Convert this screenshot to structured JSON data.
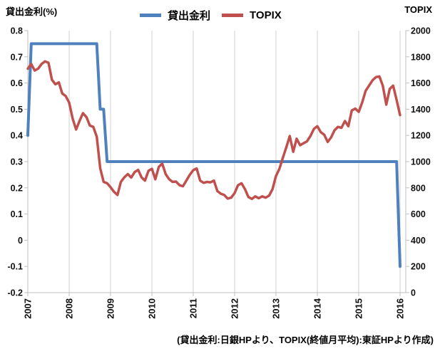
{
  "header": {
    "left_axis_title": "貸出金利(%)",
    "right_axis_title": "TOPIX"
  },
  "legend": [
    {
      "label": "貸出金利",
      "color": "#4F81BD"
    },
    {
      "label": "TOPIX",
      "color": "#C0504D"
    }
  ],
  "caption": "(貸出金利:日銀HPより、TOPIX(終値月平均):東証HPより作成)",
  "chart_data": {
    "type": "line",
    "title": "",
    "legend_position": "top-center",
    "grid": "vertical-yearly",
    "x": {
      "unit": "month",
      "start_year": 2007,
      "tick_labels": [
        "2007",
        "2008",
        "2009",
        "2010",
        "2011",
        "2012",
        "2013",
        "2014",
        "2015",
        "2016"
      ]
    },
    "left_axis": {
      "title": "貸出金利(%)",
      "min": -0.2,
      "max": 0.8,
      "ticks": [
        "0.8",
        "0.7",
        "0.6",
        "0.5",
        "0.4",
        "0.3",
        "0.2",
        "0.1",
        "0",
        "-0.1",
        "-0.2"
      ]
    },
    "right_axis": {
      "title": "TOPIX",
      "min": 0,
      "max": 2000,
      "ticks": [
        "2000",
        "1800",
        "1600",
        "1400",
        "1200",
        "1000",
        "800",
        "600",
        "400",
        "200",
        "0"
      ]
    },
    "series": [
      {
        "name": "貸出金利",
        "axis": "left",
        "color": "#4F81BD",
        "monthly_values": [
          0.4,
          0.75,
          0.75,
          0.75,
          0.75,
          0.75,
          0.75,
          0.75,
          0.75,
          0.75,
          0.75,
          0.75,
          0.75,
          0.75,
          0.75,
          0.75,
          0.75,
          0.75,
          0.75,
          0.75,
          0.75,
          0.5,
          0.5,
          0.3,
          0.3,
          0.3,
          0.3,
          0.3,
          0.3,
          0.3,
          0.3,
          0.3,
          0.3,
          0.3,
          0.3,
          0.3,
          0.3,
          0.3,
          0.3,
          0.3,
          0.3,
          0.3,
          0.3,
          0.3,
          0.3,
          0.3,
          0.3,
          0.3,
          0.3,
          0.3,
          0.3,
          0.3,
          0.3,
          0.3,
          0.3,
          0.3,
          0.3,
          0.3,
          0.3,
          0.3,
          0.3,
          0.3,
          0.3,
          0.3,
          0.3,
          0.3,
          0.3,
          0.3,
          0.3,
          0.3,
          0.3,
          0.3,
          0.3,
          0.3,
          0.3,
          0.3,
          0.3,
          0.3,
          0.3,
          0.3,
          0.3,
          0.3,
          0.3,
          0.3,
          0.3,
          0.3,
          0.3,
          0.3,
          0.3,
          0.3,
          0.3,
          0.3,
          0.3,
          0.3,
          0.3,
          0.3,
          0.3,
          0.3,
          0.3,
          0.3,
          0.3,
          0.3,
          0.3,
          0.3,
          0.3,
          0.3,
          0.3,
          0.3,
          -0.1
        ]
      },
      {
        "name": "TOPIX",
        "axis": "right",
        "color": "#C0504D",
        "monthly_values": [
          1710,
          1745,
          1695,
          1710,
          1745,
          1765,
          1755,
          1625,
          1590,
          1605,
          1520,
          1500,
          1450,
          1330,
          1245,
          1310,
          1370,
          1340,
          1275,
          1265,
          1190,
          950,
          845,
          835,
          805,
          770,
          745,
          845,
          880,
          905,
          878,
          920,
          937,
          880,
          855,
          930,
          945,
          865,
          960,
          985,
          905,
          865,
          845,
          848,
          820,
          812,
          855,
          900,
          935,
          948,
          855,
          838,
          845,
          842,
          855,
          775,
          755,
          745,
          718,
          725,
          760,
          820,
          835,
          790,
          730,
          715,
          735,
          720,
          735,
          725,
          740,
          790,
          890,
          945,
          1030,
          1110,
          1195,
          1075,
          1175,
          1125,
          1140,
          1155,
          1195,
          1250,
          1270,
          1225,
          1205,
          1150,
          1185,
          1240,
          1265,
          1258,
          1310,
          1270,
          1390,
          1405,
          1380,
          1450,
          1540,
          1580,
          1620,
          1645,
          1650,
          1580,
          1435,
          1555,
          1580,
          1470,
          1355
        ]
      }
    ]
  }
}
